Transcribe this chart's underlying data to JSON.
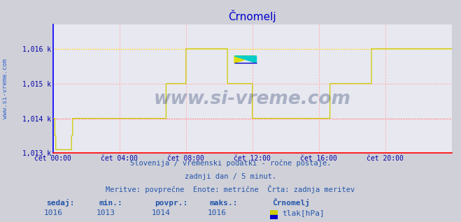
{
  "title": "Črnomelj",
  "background_color": "#d0d0d8",
  "plot_bg_color": "#e8e8f0",
  "line_color": "#cccc00",
  "dotted_max_color": "#ffff00",
  "dotted_min_color": "#ff8080",
  "x_label_color": "#0000aa",
  "y_label_color": "#0000aa",
  "title_color": "#0000cc",
  "grid_color": "#ffb0b0",
  "axis_color": "#0000ff",
  "bottom_axis_color": "#ff0000",
  "right_arrow_color": "#ff0000",
  "footer_color": "#2255aa",
  "ylim": [
    1013.0,
    1016.7
  ],
  "yticks": [
    1013,
    1014,
    1015,
    1016
  ],
  "ytick_labels": [
    "1,013 k",
    "1,014 k",
    "1,015 k",
    "1,016 k"
  ],
  "xtick_labels": [
    "čet 00:00",
    "čet 04:00",
    "čet 08:00",
    "čet 12:00",
    "čet 16:00",
    "čet 20:00"
  ],
  "xtick_positions": [
    0,
    288,
    576,
    864,
    1152,
    1440
  ],
  "total_points": 1728,
  "footer_line1": "Slovenija / vremenski podatki - ročne postaje.",
  "footer_line2": "zadnji dan / 5 minut.",
  "footer_line3": "Meritve: povprečne  Enote: metrične  Črta: zadnja meritev",
  "stat_labels": [
    "sedaj:",
    "min.:",
    "povpr.:",
    "maks.:"
  ],
  "stat_values": [
    "1016",
    "1013",
    "1014",
    "1016"
  ],
  "station_name": "Črnomelj",
  "legend_label": "tlak[hPa]",
  "legend_color_top": "#cccc00",
  "legend_color_bottom": "#0000cc",
  "watermark": "www.si-vreme.com",
  "watermark_color": "#1a3060",
  "watermark_alpha": 0.3,
  "left_text": "www.si-vreme.com",
  "left_text_color": "#3366cc"
}
